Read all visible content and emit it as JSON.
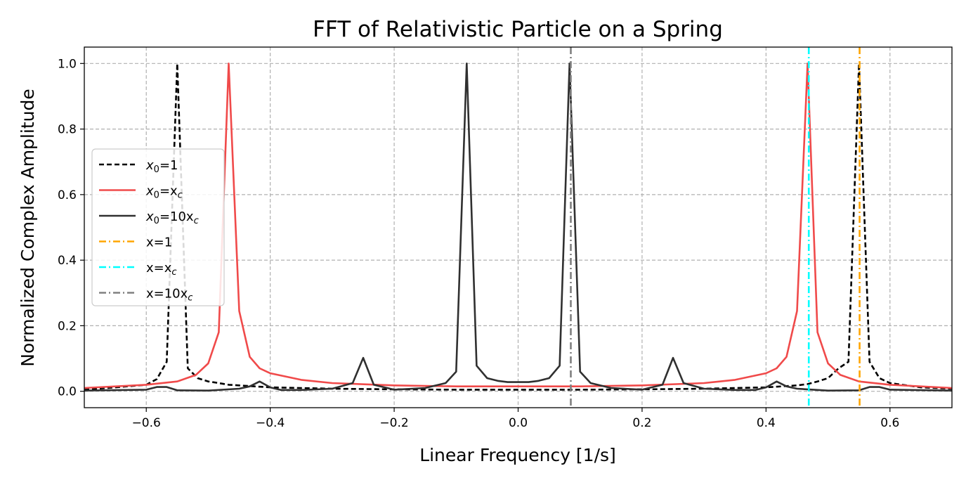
{
  "chart_data": {
    "type": "line",
    "title": "FFT of Relativistic Particle on a Spring",
    "xlabel": "Linear Frequency [1/s]",
    "ylabel": "Normalized Complex Amplitude",
    "xlim": [
      -0.7,
      0.7
    ],
    "ylim": [
      -0.05,
      1.05
    ],
    "grid": true,
    "legend_position": "center-left",
    "x_ticks": [
      {
        "value": -0.6,
        "label": "−0.6"
      },
      {
        "value": -0.4,
        "label": "−0.4"
      },
      {
        "value": -0.2,
        "label": "−0.2"
      },
      {
        "value": 0.0,
        "label": "0.0"
      },
      {
        "value": 0.2,
        "label": "0.2"
      },
      {
        "value": 0.4,
        "label": "0.4"
      },
      {
        "value": 0.6,
        "label": "0.6"
      }
    ],
    "y_ticks": [
      {
        "value": 0.0,
        "label": "0.0"
      },
      {
        "value": 0.2,
        "label": "0.2"
      },
      {
        "value": 0.4,
        "label": "0.4"
      },
      {
        "value": 0.6,
        "label": "0.6"
      },
      {
        "value": 0.8,
        "label": "0.8"
      },
      {
        "value": 1.0,
        "label": "1.0"
      }
    ],
    "series": [
      {
        "name": "x0=1",
        "legend": {
          "main": "x",
          "sub": "0",
          "rest": "=1",
          "rest_sub": ""
        },
        "color": "#000000",
        "style": "dashed",
        "x": [
          -0.7,
          -0.65,
          -0.6,
          -0.583,
          -0.567,
          -0.55,
          -0.533,
          -0.517,
          -0.5,
          -0.483,
          -0.467,
          -0.45,
          -0.4,
          -0.35,
          -0.3,
          -0.2,
          -0.1,
          0.0,
          0.1,
          0.2,
          0.3,
          0.35,
          0.4,
          0.45,
          0.467,
          0.483,
          0.5,
          0.517,
          0.533,
          0.55,
          0.567,
          0.583,
          0.6,
          0.65,
          0.7
        ],
        "y": [
          0.005,
          0.012,
          0.02,
          0.037,
          0.09,
          1.0,
          0.07,
          0.04,
          0.03,
          0.025,
          0.02,
          0.018,
          0.012,
          0.01,
          0.008,
          0.006,
          0.005,
          0.005,
          0.005,
          0.006,
          0.008,
          0.01,
          0.012,
          0.018,
          0.022,
          0.03,
          0.04,
          0.07,
          0.09,
          1.0,
          0.09,
          0.04,
          0.025,
          0.012,
          0.008
        ]
      },
      {
        "name": "x0=xc",
        "legend": {
          "main": "x",
          "sub": "0",
          "rest": "=x",
          "rest_sub": "c"
        },
        "color": "#f04a4a",
        "style": "solid",
        "x": [
          -0.7,
          -0.6,
          -0.55,
          -0.52,
          -0.5,
          -0.483,
          -0.467,
          -0.45,
          -0.433,
          -0.417,
          -0.4,
          -0.35,
          -0.3,
          -0.2,
          -0.1,
          0.0,
          0.1,
          0.2,
          0.3,
          0.35,
          0.4,
          0.417,
          0.433,
          0.45,
          0.467,
          0.483,
          0.5,
          0.52,
          0.55,
          0.6,
          0.7
        ],
        "y": [
          0.01,
          0.02,
          0.03,
          0.05,
          0.085,
          0.18,
          1.0,
          0.245,
          0.105,
          0.07,
          0.055,
          0.035,
          0.025,
          0.018,
          0.015,
          0.015,
          0.015,
          0.018,
          0.025,
          0.035,
          0.055,
          0.07,
          0.105,
          0.245,
          1.0,
          0.18,
          0.085,
          0.05,
          0.03,
          0.02,
          0.01
        ]
      },
      {
        "name": "x0=10xc",
        "legend": {
          "main": "x",
          "sub": "0",
          "rest": "=10x",
          "rest_sub": "c"
        },
        "color": "#303030",
        "style": "solid",
        "x": [
          -0.7,
          -0.6,
          -0.583,
          -0.567,
          -0.55,
          -0.5,
          -0.45,
          -0.433,
          -0.417,
          -0.4,
          -0.383,
          -0.35,
          -0.3,
          -0.267,
          -0.25,
          -0.233,
          -0.2,
          -0.15,
          -0.117,
          -0.1,
          -0.083,
          -0.067,
          -0.05,
          -0.033,
          -0.017,
          0.0,
          0.017,
          0.033,
          0.05,
          0.067,
          0.083,
          0.1,
          0.117,
          0.15,
          0.2,
          0.233,
          0.25,
          0.267,
          0.3,
          0.35,
          0.383,
          0.4,
          0.417,
          0.433,
          0.45,
          0.5,
          0.55,
          0.567,
          0.583,
          0.6,
          0.7
        ],
        "y": [
          0.002,
          0.005,
          0.013,
          0.013,
          0.003,
          0.002,
          0.008,
          0.015,
          0.03,
          0.012,
          0.004,
          0.004,
          0.008,
          0.025,
          0.102,
          0.02,
          0.005,
          0.01,
          0.025,
          0.06,
          1.0,
          0.078,
          0.04,
          0.032,
          0.028,
          0.028,
          0.028,
          0.032,
          0.04,
          0.078,
          1.0,
          0.06,
          0.025,
          0.01,
          0.005,
          0.02,
          0.102,
          0.025,
          0.008,
          0.004,
          0.004,
          0.012,
          0.03,
          0.015,
          0.008,
          0.002,
          0.003,
          0.013,
          0.013,
          0.005,
          0.002
        ]
      }
    ],
    "vlines": [
      {
        "name": "x=1",
        "legend": {
          "main": "x=1",
          "sub": ""
        },
        "x": 0.551,
        "color": "#ffa500",
        "style": "dashdot"
      },
      {
        "name": "x=xc",
        "legend": {
          "main": "x=x",
          "sub": "c"
        },
        "x": 0.469,
        "color": "#00ffff",
        "style": "dashdot"
      },
      {
        "name": "x=10xc",
        "legend": {
          "main": "x=10x",
          "sub": "c"
        },
        "x": 0.085,
        "color": "#808080",
        "style": "dashdot"
      }
    ]
  }
}
